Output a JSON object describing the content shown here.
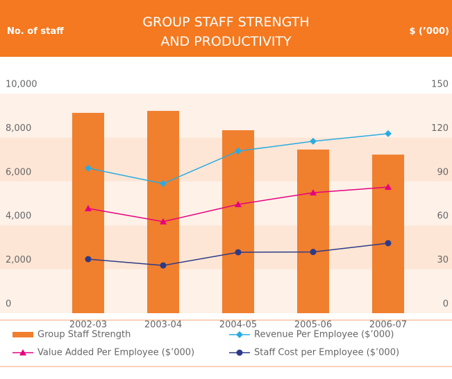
{
  "chart_data": {
    "type": "bar",
    "title": "GROUP STAFF STRENGTH AND PRODUCTIVITY",
    "y_label": "No. of staff",
    "y2_label": "$ (’000)",
    "categories": [
      "2002-03",
      "2003-04",
      "2004-05",
      "2005-06",
      "2006-07"
    ],
    "series": [
      {
        "name": "Group Staff Strength",
        "type": "bar",
        "color": "#f07f2e",
        "values": [
          9120,
          9210,
          8330,
          7450,
          7220
        ]
      },
      {
        "name": "Revenue Per Employee ($’000)",
        "type": "line",
        "axis": "y2",
        "marker": "diamond",
        "color": "#29abe2",
        "values": [
          99,
          88.5,
          110.7,
          117.4,
          122.6
        ]
      },
      {
        "name": "Value Added Per Employee ($’000)",
        "type": "line",
        "axis": "y2",
        "marker": "triangle",
        "color": "#e6007e",
        "values": [
          71.5,
          62.5,
          74.3,
          82.3,
          86.1
        ]
      },
      {
        "name": "Staff Cost per Employee ($’000)",
        "type": "line",
        "axis": "y2",
        "marker": "circle",
        "color": "#2e3a87",
        "values": [
          36.9,
          32.6,
          41.6,
          41.8,
          47.8
        ]
      }
    ],
    "ylim": [
      0,
      10000
    ],
    "yticks": [
      0,
      {
        "value": 2000,
        "label": "2,000"
      },
      {
        "value": 4000,
        "label": "4,000"
      },
      {
        "value": 6000,
        "label": "6,000"
      },
      {
        "value": 8000,
        "label": "8,000"
      },
      {
        "value": 10000,
        "label": "10,000"
      }
    ],
    "y2lim": [
      0,
      150
    ],
    "y2ticks": [
      0,
      30,
      60,
      90,
      120,
      150
    ]
  }
}
